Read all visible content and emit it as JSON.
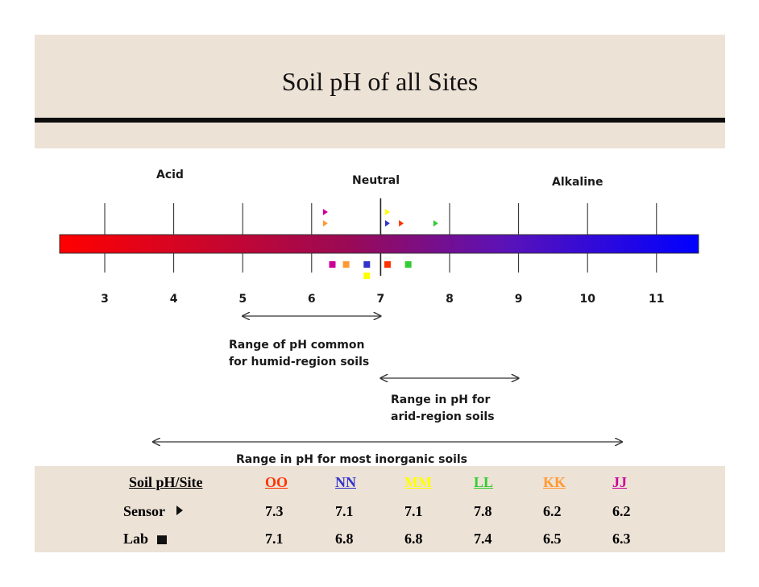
{
  "title": "Soil pH of all Sites",
  "scale": {
    "zone_labels": {
      "acid": "Acid",
      "neutral": "Neutral",
      "alkaline": "Alkaline"
    },
    "ticks": [
      3,
      4,
      5,
      6,
      7,
      8,
      9,
      10,
      11
    ],
    "gradient_colors": [
      "#ff0000",
      "#9a0a55",
      "#5a12b8",
      "#0000ff"
    ]
  },
  "ranges": {
    "humid": {
      "label_line1": "Range of pH  common",
      "label_line2": "for humid-region soils",
      "from": 5,
      "to": 7
    },
    "arid": {
      "label_line1": "Range in pH for",
      "label_line2": "arid-region soils",
      "from": 7,
      "to": 9
    },
    "inorganic": {
      "label": "Range in pH for most inorganic  soils",
      "from": 3.7,
      "to": 10.5
    }
  },
  "table": {
    "header_label": "Soil pH/Site",
    "sensor_label": "Sensor",
    "lab_label": "Lab",
    "sites": [
      {
        "name": "OO",
        "color": "#ff3300",
        "sensor": "7.3",
        "lab": "7.1"
      },
      {
        "name": "NN",
        "color": "#3333cc",
        "sensor": "7.1",
        "lab": "6.8"
      },
      {
        "name": "MM",
        "color": "#ffff00",
        "sensor": "7.1",
        "lab": "6.8"
      },
      {
        "name": "LL",
        "color": "#33cc33",
        "sensor": "7.8",
        "lab": "7.4"
      },
      {
        "name": "KK",
        "color": "#ff9933",
        "sensor": "6.2",
        "lab": "6.5"
      },
      {
        "name": "JJ",
        "color": "#cc0099",
        "sensor": "6.2",
        "lab": "6.3"
      }
    ]
  },
  "chart_data": {
    "type": "scatter",
    "title": "Soil pH of all Sites",
    "xlabel": "",
    "ylabel": "",
    "xlim": [
      3,
      11
    ],
    "series": [
      {
        "name": "Sensor",
        "marker": "triangle",
        "points": [
          {
            "site": "OO",
            "value": 7.3
          },
          {
            "site": "NN",
            "value": 7.1
          },
          {
            "site": "MM",
            "value": 7.1
          },
          {
            "site": "LL",
            "value": 7.8
          },
          {
            "site": "KK",
            "value": 6.2
          },
          {
            "site": "JJ",
            "value": 6.2
          }
        ]
      },
      {
        "name": "Lab",
        "marker": "square",
        "points": [
          {
            "site": "OO",
            "value": 7.1
          },
          {
            "site": "NN",
            "value": 6.8
          },
          {
            "site": "MM",
            "value": 6.8
          },
          {
            "site": "LL",
            "value": 7.4
          },
          {
            "site": "KK",
            "value": 6.5
          },
          {
            "site": "JJ",
            "value": 6.3
          }
        ]
      }
    ]
  }
}
